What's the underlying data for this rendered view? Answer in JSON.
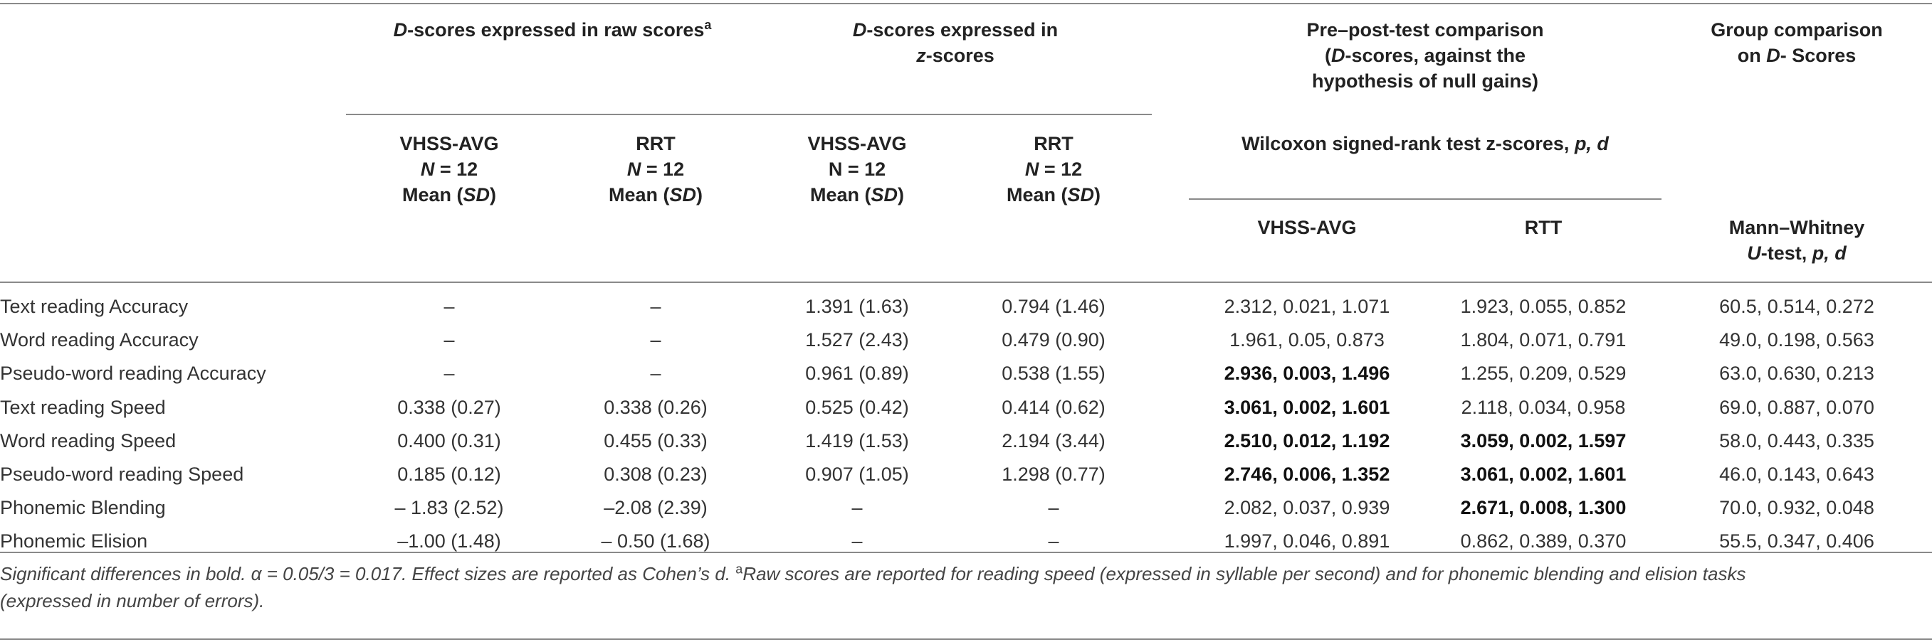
{
  "header": {
    "group1": {
      "prefix": "D",
      "text": "-scores expressed in raw scores",
      "sup": "a"
    },
    "group2": {
      "prefix": "D",
      "text": "-scores expressed in",
      "line2_prefix": "z",
      "line2": "-scores"
    },
    "group3": {
      "line1": "Pre–post-test comparison",
      "line2a": "(",
      "line2b": "D",
      "line2c": "-scores, against the",
      "line3": "hypothesis of null gains)"
    },
    "group4": {
      "line1": "Group comparison",
      "line2a": "on ",
      "line2b": "D",
      "line2c": "- Scores"
    },
    "col_vhss_raw": {
      "name": "VHSS-AVG",
      "n_label": "N",
      "n_value": " = 12",
      "mean": "Mean (",
      "sd": "SD",
      "close": ")"
    },
    "col_rrt_raw": {
      "name": "RRT",
      "n_label": "N",
      "n_value": " = 12",
      "mean": "Mean (",
      "sd": "SD",
      "close": ")"
    },
    "col_vhss_z": {
      "name": "VHSS-AVG",
      "n_line": "N = 12",
      "mean": "Mean (",
      "sd": "SD",
      "close": ")"
    },
    "col_rrt_z": {
      "name": "RRT",
      "n_label": "N",
      "n_value": " = 12",
      "mean": "Mean (",
      "sd": "SD",
      "close": ")"
    },
    "wilcoxon": {
      "text": "Wilcoxon signed-rank test z-scores, ",
      "stats": "p, d"
    },
    "wil_vhss": "VHSS-AVG",
    "wil_rtt": "RTT",
    "mann": {
      "line1": "Mann–Whitney",
      "line2a": "U",
      "line2b": "-test, ",
      "line2c": "p, d"
    }
  },
  "rows": [
    {
      "label": "Text reading Accuracy",
      "vr": "–",
      "rr": "–",
      "vz": "1.391 (1.63)",
      "rz": "0.794 (1.46)",
      "wv": "2.312, 0.021, 1.071",
      "wv_bold": false,
      "wr": "1.923, 0.055, 0.852",
      "wr_bold": false,
      "mw": "60.5, 0.514, 0.272"
    },
    {
      "label": "Word reading Accuracy",
      "vr": "–",
      "rr": "–",
      "vz": "1.527 (2.43)",
      "rz": "0.479 (0.90)",
      "wv": "1.961, 0.05, 0.873",
      "wv_bold": false,
      "wr": "1.804, 0.071, 0.791",
      "wr_bold": false,
      "mw": "49.0, 0.198, 0.563"
    },
    {
      "label": "Pseudo-word reading Accuracy",
      "vr": "–",
      "rr": "–",
      "vz": "0.961 (0.89)",
      "rz": "0.538 (1.55)",
      "wv": "2.936, 0.003, 1.496",
      "wv_bold": true,
      "wr": "1.255, 0.209, 0.529",
      "wr_bold": false,
      "mw": "63.0, 0.630, 0.213"
    },
    {
      "label": "Text reading Speed",
      "vr": "0.338 (0.27)",
      "rr": "0.338 (0.26)",
      "vz": "0.525 (0.42)",
      "rz": "0.414 (0.62)",
      "wv": "3.061, 0.002, 1.601",
      "wv_bold": true,
      "wr": "2.118, 0.034, 0.958",
      "wr_bold": false,
      "mw": "69.0, 0.887, 0.070"
    },
    {
      "label": "Word reading Speed",
      "vr": "0.400 (0.31)",
      "rr": "0.455 (0.33)",
      "vz": "1.419 (1.53)",
      "rz": "2.194 (3.44)",
      "wv": "2.510, 0.012, 1.192",
      "wv_bold": true,
      "wr": "3.059, 0.002, 1.597",
      "wr_bold": true,
      "mw": "58.0, 0.443, 0.335"
    },
    {
      "label": "Pseudo-word reading Speed",
      "vr": "0.185 (0.12)",
      "rr": "0.308 (0.23)",
      "vz": "0.907 (1.05)",
      "rz": "1.298 (0.77)",
      "wv": "2.746, 0.006, 1.352",
      "wv_bold": true,
      "wr": "3.061, 0.002, 1.601",
      "wr_bold": true,
      "mw": "46.0, 0.143, 0.643"
    },
    {
      "label": "Phonemic Blending",
      "vr": "– 1.83 (2.52)",
      "rr": "–2.08 (2.39)",
      "vz": "–",
      "rz": "–",
      "wv": "2.082, 0.037, 0.939",
      "wv_bold": false,
      "wr": "2.671, 0.008, 1.300",
      "wr_bold": true,
      "mw": "70.0, 0.932, 0.048"
    },
    {
      "label": "Phonemic Elision",
      "vr": "–1.00 (1.48)",
      "rr": "– 0.50 (1.68)",
      "vz": "–",
      "rz": "–",
      "wv": "1.997, 0.046, 0.891",
      "wv_bold": false,
      "wr": "0.862, 0.389, 0.370",
      "wr_bold": false,
      "mw": "55.5, 0.347, 0.406"
    }
  ],
  "note": {
    "line1": "Significant differences in bold. α = 0.05/3 = 0.017. Effect sizes are reported as Cohen’s d. ",
    "sup": "a",
    "line1_rest": "Raw scores are reported for reading speed (expressed in syllable per second) and for phonemic blending and elision tasks",
    "line2": "(expressed in number of errors)."
  }
}
